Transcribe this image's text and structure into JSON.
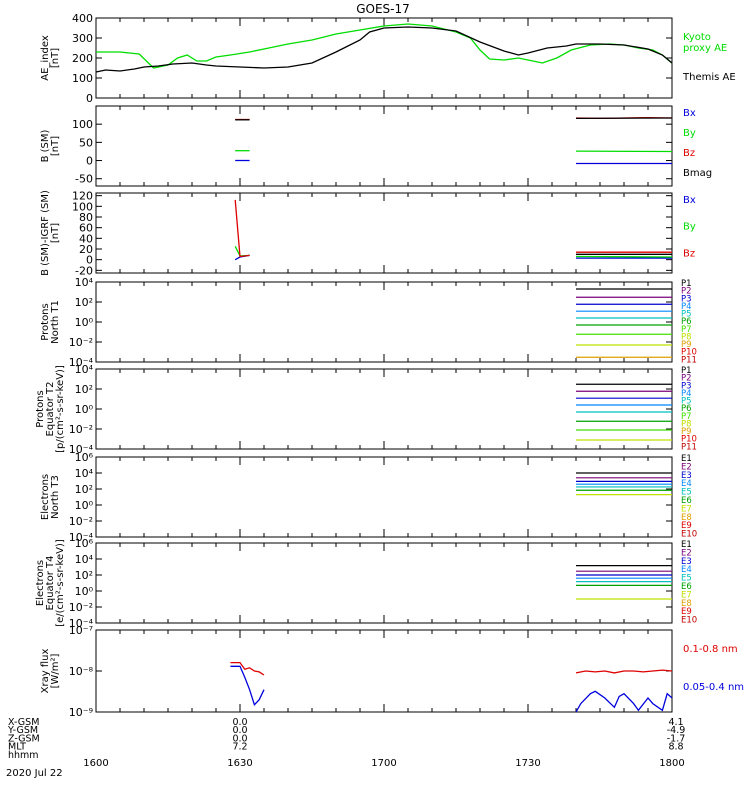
{
  "chart_data": {
    "type": "line",
    "title": "GOES-17",
    "time_ticks": [
      "1600",
      "1630",
      "1700",
      "1730",
      "1800"
    ],
    "panels": [
      {
        "ylabel": [
          "AE_index",
          "[nT]"
        ],
        "ylim": [
          0,
          400
        ],
        "yscale": "linear",
        "ticks": [
          "0",
          "100",
          "200",
          "300",
          "400"
        ],
        "tick_values": [
          0,
          100,
          200,
          300,
          400
        ],
        "series": [
          {
            "name": "Kyoto proxy AE",
            "label_lines": [
              "Kyoto",
              "proxy AE"
            ],
            "color": "#00dd00",
            "x": [
              0,
              5,
              9,
              12,
              15,
              17,
              19,
              21,
              23,
              25,
              28,
              32,
              36,
              40,
              45,
              50,
              55,
              60,
              65,
              70,
              75,
              78,
              80,
              82,
              85,
              88,
              90,
              93,
              96,
              99,
              103,
              107,
              110,
              113,
              116,
              118,
              120
            ],
            "y": [
              230,
              230,
              220,
              150,
              165,
              200,
              215,
              185,
              185,
              205,
              215,
              230,
              250,
              270,
              290,
              320,
              340,
              360,
              370,
              360,
              330,
              300,
              240,
              195,
              190,
              200,
              190,
              175,
              200,
              240,
              265,
              270,
              265,
              250,
              240,
              215,
              175
            ]
          },
          {
            "name": "Themis AE",
            "label_lines": [
              "Themis AE"
            ],
            "color": "#000000",
            "x": [
              0,
              2,
              5,
              8,
              10,
              13,
              16,
              20,
              23,
              25,
              30,
              35,
              40,
              45,
              50,
              55,
              57,
              60,
              65,
              70,
              75,
              80,
              85,
              88,
              90,
              94,
              98,
              100,
              105,
              110,
              115,
              118,
              120
            ],
            "y": [
              130,
              140,
              135,
              145,
              155,
              160,
              170,
              175,
              165,
              160,
              155,
              150,
              155,
              175,
              230,
              290,
              330,
              350,
              355,
              350,
              335,
              280,
              235,
              215,
              225,
              250,
              260,
              270,
              270,
              265,
              245,
              215,
              175
            ]
          }
        ]
      },
      {
        "ylabel": [
          "B (SM)",
          "[nT]"
        ],
        "ylim": [
          -70,
          150
        ],
        "yscale": "linear",
        "ticks": [
          "-50",
          "0",
          "50",
          "100"
        ],
        "tick_values": [
          -50,
          0,
          50,
          100
        ],
        "series": [
          {
            "name": "Bx",
            "color": "#0000dd",
            "x": [
              29,
              32,
              36,
              39,
              42,
              45
            ],
            "y": [
              0,
              0,
              null,
              null,
              null,
              null
            ]
          },
          {
            "name": "By",
            "color": "#00dd00",
            "x": [
              29,
              32
            ],
            "y": [
              27,
              27
            ]
          },
          {
            "name": "Bz",
            "color": "#dd0000",
            "x": [
              29,
              32
            ],
            "y": [
              113,
              113
            ]
          },
          {
            "name": "Bmag",
            "color": "#000000",
            "x": [
              29,
              32
            ],
            "y": [
              112,
              112
            ]
          }
        ],
        "series_late": [
          {
            "color": "#0000dd",
            "x": [
              100,
              120
            ],
            "y": [
              -8,
              -8
            ]
          },
          {
            "color": "#00dd00",
            "x": [
              100,
              120
            ],
            "y": [
              26,
              25
            ]
          },
          {
            "color": "#dd0000",
            "x": [
              100,
              105,
              110,
              115,
              120
            ],
            "y": [
              117,
              116,
              117,
              118,
              117
            ]
          },
          {
            "color": "#000000",
            "x": [
              100,
              120
            ],
            "y": [
              116,
              117
            ]
          }
        ]
      },
      {
        "ylabel": [
          "B (SM)-IGRF (SM)",
          "[nT]"
        ],
        "ylim": [
          -25,
          125
        ],
        "yscale": "linear",
        "ticks": [
          "-20",
          "0",
          "20",
          "40",
          "60",
          "80",
          "100",
          "120"
        ],
        "tick_values": [
          -20,
          0,
          20,
          40,
          60,
          80,
          100,
          120
        ],
        "series": [
          {
            "name": "Bx",
            "color": "#0000dd",
            "x": [
              29,
              30,
              32
            ],
            "y": [
              0,
              5,
              8
            ]
          },
          {
            "name": "By",
            "color": "#00dd00",
            "x": [
              29,
              30,
              32
            ],
            "y": [
              25,
              7,
              8
            ]
          },
          {
            "name": "Bz",
            "color": "#dd0000",
            "x": [
              29,
              30,
              32
            ],
            "y": [
              112,
              6,
              8
            ]
          }
        ],
        "series_late": [
          {
            "color": "#0000dd",
            "x": [
              100,
              120
            ],
            "y": [
              3,
              3
            ]
          },
          {
            "color": "#00dd00",
            "x": [
              100,
              120
            ],
            "y": [
              6,
              5
            ]
          },
          {
            "color": "#dd0000",
            "x": [
              100,
              120
            ],
            "y": [
              14,
              14
            ]
          },
          {
            "color": "#000000",
            "x": [
              100,
              120
            ],
            "y": [
              10,
              10
            ]
          }
        ]
      },
      {
        "ylabel": [
          "Protons",
          "North T1"
        ],
        "ylim": [
          0.0001,
          10000
        ],
        "yscale": "log",
        "ticks": [
          "10⁻⁴",
          "10⁻²",
          "10⁰",
          "10²",
          "10⁴"
        ],
        "tick_values": [
          0.0001,
          0.01,
          1,
          100,
          10000
        ],
        "legend": [
          "P1",
          "P2",
          "P3",
          "P4",
          "P5",
          "P6",
          "P7",
          "P8",
          "P9",
          "P10",
          "P11"
        ],
        "legend_colors": [
          "#000000",
          "#7a007a",
          "#0000cc",
          "#0088ff",
          "#00c0c0",
          "#00a000",
          "#40e000",
          "#c0e000",
          "#e0a000",
          "#e00000",
          "#c00000"
        ],
        "x_range": [
          100,
          120
        ],
        "levels": [
          2000,
          300,
          60,
          12,
          2.5,
          0.5,
          0.06,
          0.005,
          0.0003
        ]
      },
      {
        "ylabel": [
          "Protons",
          "Equator T2",
          "[p/(cm²-s-sr-keV)]"
        ],
        "ylim": [
          0.0001,
          10000
        ],
        "yscale": "log",
        "ticks": [
          "10⁻⁴",
          "10⁻²",
          "10⁰",
          "10²",
          "10⁴"
        ],
        "tick_values": [
          0.0001,
          0.01,
          1,
          100,
          10000
        ],
        "legend": [
          "P1",
          "P2",
          "P3",
          "P4",
          "P5",
          "P6",
          "P7",
          "P8",
          "P9",
          "P10",
          "P11"
        ],
        "legend_colors": [
          "#000000",
          "#7a007a",
          "#0000cc",
          "#0088ff",
          "#00c0c0",
          "#00a000",
          "#40e000",
          "#c0e000",
          "#e0a000",
          "#e00000",
          "#c00000"
        ],
        "x_range": [
          100,
          120
        ],
        "levels": [
          300,
          60,
          12,
          2.5,
          0.5,
          0.06,
          0.008,
          0.0008
        ]
      },
      {
        "ylabel": [
          "Electrons",
          "North T3"
        ],
        "ylim": [
          0.0001,
          1000000
        ],
        "yscale": "log",
        "ticks": [
          "10⁻⁴",
          "10⁻²",
          "10⁰",
          "10²",
          "10⁴",
          "10⁶"
        ],
        "tick_values": [
          0.0001,
          0.01,
          1,
          100,
          10000,
          1000000
        ],
        "legend": [
          "E1",
          "E2",
          "E3",
          "E4",
          "E5",
          "E6",
          "E7",
          "E8",
          "E9",
          "E10"
        ],
        "legend_colors": [
          "#000000",
          "#7a007a",
          "#0000cc",
          "#0088ff",
          "#00c0c0",
          "#00a000",
          "#c0e000",
          "#e0a000",
          "#e00000",
          "#c00000"
        ],
        "x_range": [
          100,
          120
        ],
        "levels": [
          10000,
          2500,
          900,
          400,
          180,
          70,
          20
        ]
      },
      {
        "ylabel": [
          "Electrons",
          "Equator T4",
          "[e/(cm²-s-sr-keV)]"
        ],
        "ylim": [
          0.0001,
          1000000
        ],
        "yscale": "log",
        "ticks": [
          "10⁻⁴",
          "10⁻²",
          "10⁰",
          "10²",
          "10⁴",
          "10⁶"
        ],
        "tick_values": [
          0.0001,
          0.01,
          1,
          100,
          10000,
          1000000
        ],
        "legend": [
          "E1",
          "E2",
          "E3",
          "E4",
          "E5",
          "E6",
          "E7",
          "E8",
          "E9",
          "E10"
        ],
        "legend_colors": [
          "#000000",
          "#7a007a",
          "#0000cc",
          "#0088ff",
          "#00c0c0",
          "#00a000",
          "#c0e000",
          "#e0a000",
          "#e00000",
          "#c00000"
        ],
        "x_range": [
          100,
          120
        ],
        "levels": [
          1500,
          300,
          100,
          40,
          15,
          5,
          0.1
        ]
      },
      {
        "ylabel": [
          "Xray flux",
          "[W/m²]"
        ],
        "ylim": [
          1e-09,
          1e-07
        ],
        "yscale": "log",
        "ticks": [
          "10⁻⁹",
          "10⁻⁸",
          "10⁻⁷"
        ],
        "tick_values": [
          1e-09,
          1e-08,
          1e-07
        ],
        "series": [
          {
            "name": "0.1-0.8 nm",
            "color": "#dd0000",
            "x": [
              28,
              30,
              31,
              32,
              33,
              34,
              35
            ],
            "y": [
              1.6e-08,
              1.6e-08,
              1.1e-08,
              1.2e-08,
              1e-08,
              9.5e-09,
              8e-09
            ]
          },
          {
            "name": "0.05-0.4 nm",
            "color": "#0000dd",
            "x": [
              28,
              30,
              31,
              32,
              33,
              34,
              35
            ],
            "y": [
              1.3e-08,
              1.3e-08,
              7e-09,
              3.5e-09,
              1.5e-09,
              2e-09,
              3.5e-09
            ]
          }
        ],
        "series_late": [
          {
            "color": "#dd0000",
            "x": [
              100,
              102,
              104,
              106,
              108,
              110,
              112,
              114,
              116,
              118,
              120
            ],
            "y": [
              9e-09,
              1e-08,
              9.5e-09,
              1e-08,
              9e-09,
              1e-08,
              1e-08,
              9.5e-09,
              1e-08,
              1.05e-08,
              1e-08
            ]
          },
          {
            "color": "#0000dd",
            "x": [
              100,
              101,
              103,
              104,
              106,
              108,
              109,
              110,
              112,
              113,
              115,
              116,
              118,
              119,
              120
            ],
            "y": [
              1e-09,
              1.6e-09,
              2.8e-09,
              3.2e-09,
              2.2e-09,
              1.3e-09,
              2.4e-09,
              2.8e-09,
              1.6e-09,
              1.1e-09,
              2.2e-09,
              1.6e-09,
              1.1e-09,
              2.8e-09,
              2.2e-09
            ]
          }
        ]
      }
    ]
  },
  "footer": {
    "rows": [
      {
        "label": "X-GSM",
        "v1630": "0.0",
        "v1800": "4.1"
      },
      {
        "label": "Y-GSM",
        "v1630": "0.0",
        "v1800": "-4.9"
      },
      {
        "label": "Z-GSM",
        "v1630": "0.0",
        "v1800": "-1.7"
      },
      {
        "label": "MLT",
        "v1630": "7.2",
        "v1800": "8.8"
      },
      {
        "label": "hhmm",
        "v1630": "",
        "v1800": ""
      }
    ],
    "date": "2020 Jul 22"
  }
}
